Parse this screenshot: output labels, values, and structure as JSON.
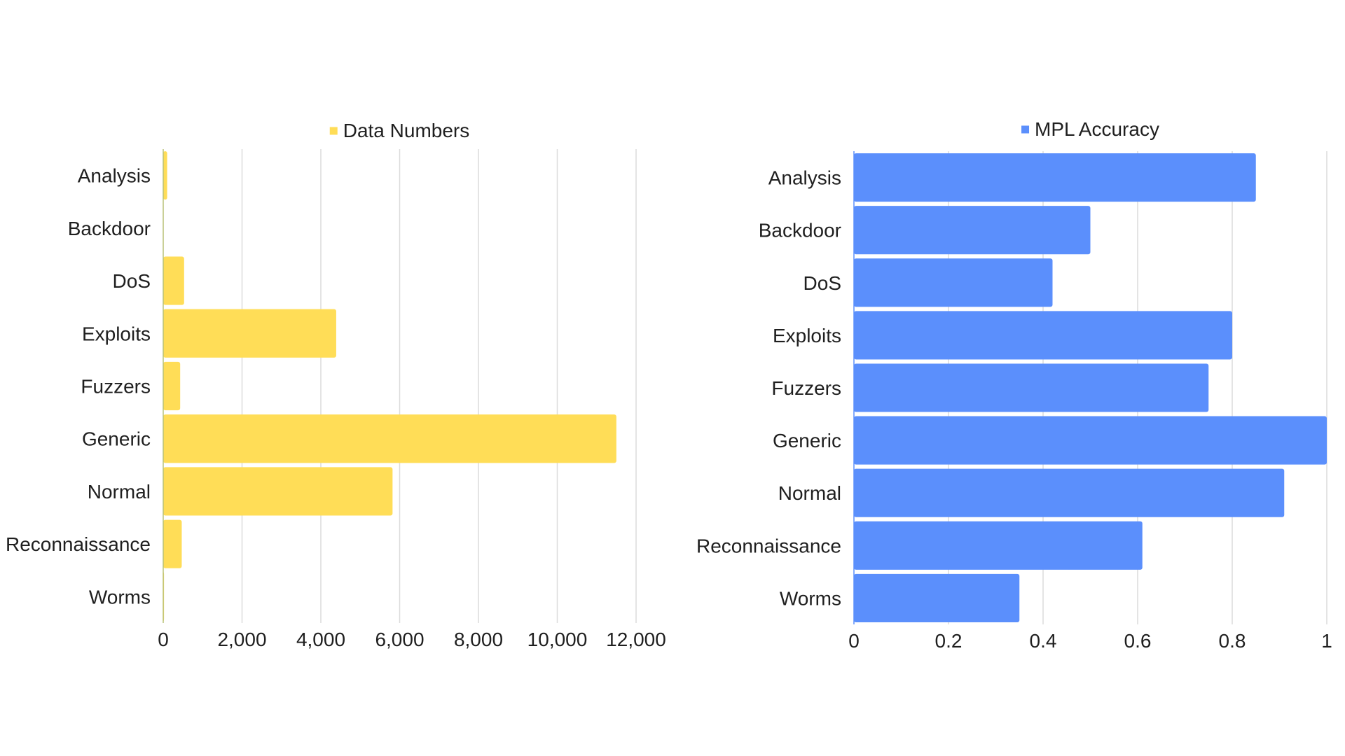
{
  "chart_data": [
    {
      "type": "bar",
      "orientation": "horizontal",
      "categories": [
        "Analysis",
        "Backdoor",
        "DoS",
        "Exploits",
        "Fuzzers",
        "Generic",
        "Normal",
        "Reconnaissance",
        "Worms"
      ],
      "series": [
        {
          "name": "Data Numbers",
          "color": "#ffdd57",
          "values": [
            100,
            10,
            530,
            4390,
            430,
            11500,
            5820,
            470,
            20
          ]
        }
      ],
      "ticks": [
        0,
        2000,
        4000,
        6000,
        8000,
        10000,
        12000
      ],
      "tick_labels": [
        "0",
        "2,000",
        "4,000",
        "6,000",
        "8,000",
        "10,000",
        "12,000"
      ],
      "xlim": [
        0,
        12000
      ],
      "grid": true,
      "legend_position": "top"
    },
    {
      "type": "bar",
      "orientation": "horizontal",
      "categories": [
        "Analysis",
        "Backdoor",
        "DoS",
        "Exploits",
        "Fuzzers",
        "Generic",
        "Normal",
        "Reconnaissance",
        "Worms"
      ],
      "series": [
        {
          "name": "MPL Accuracy",
          "color": "#5b8ffc",
          "values": [
            0.85,
            0.5,
            0.42,
            0.8,
            0.75,
            1.0,
            0.91,
            0.61,
            0.35
          ]
        }
      ],
      "ticks": [
        0,
        0.2,
        0.4,
        0.6,
        0.8,
        1
      ],
      "tick_labels": [
        "0",
        "0.2",
        "0.4",
        "0.6",
        "0.8",
        "1"
      ],
      "xlim": [
        0,
        1
      ],
      "grid": true,
      "legend_position": "top"
    }
  ]
}
